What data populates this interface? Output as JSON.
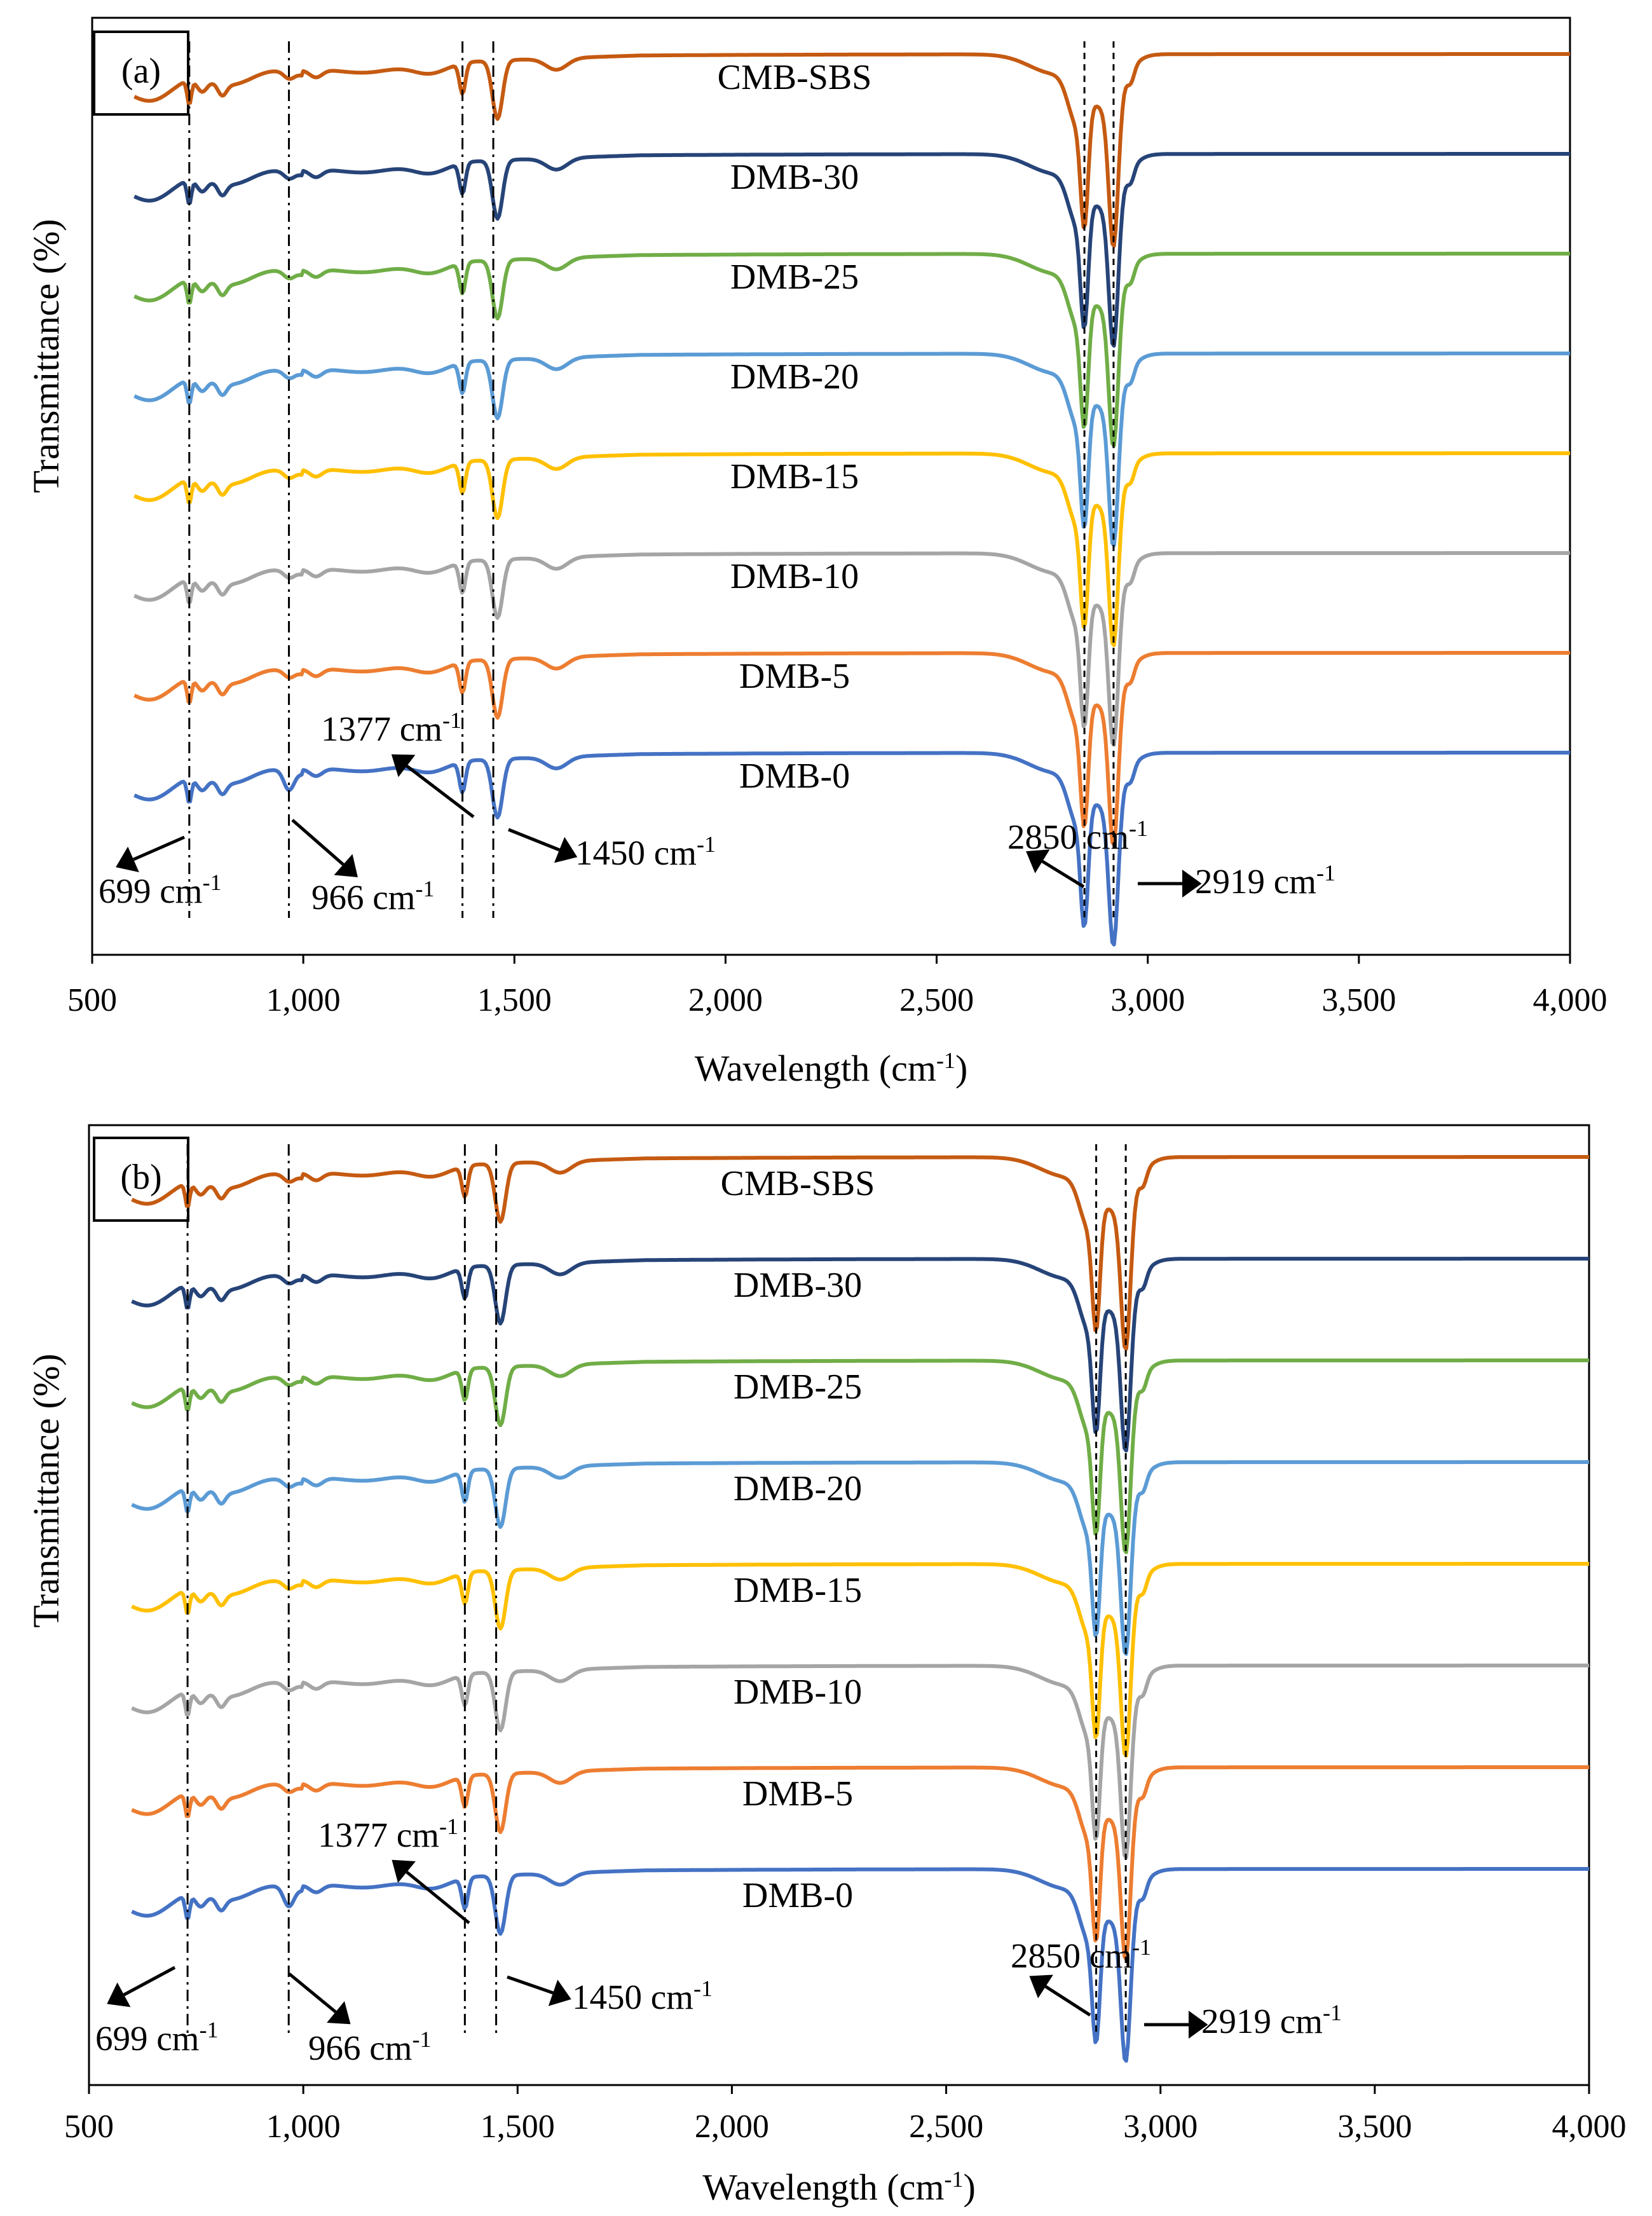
{
  "chart_data": [
    {
      "panel": "(a)",
      "type": "line",
      "xlabel": "Wavelength (cm-1)",
      "ylabel": "Transmittance (%)",
      "xlim": [
        500,
        4000
      ],
      "xticks": [
        "500",
        "1,000",
        "1,500",
        "2,000",
        "2,500",
        "3,000",
        "3,500",
        "4,000"
      ],
      "grid": false,
      "series": [
        {
          "name": "CMB-SBS",
          "color": "#C55A11"
        },
        {
          "name": "DMB-30",
          "color": "#264478"
        },
        {
          "name": "DMB-25",
          "color": "#70AD47"
        },
        {
          "name": "DMB-20",
          "color": "#5B9BD5"
        },
        {
          "name": "DMB-15",
          "color": "#FFC000"
        },
        {
          "name": "DMB-10",
          "color": "#A5A5A5"
        },
        {
          "name": "DMB-5",
          "color": "#ED7D31"
        },
        {
          "name": "DMB-0",
          "color": "#4472C4"
        }
      ],
      "peaks": [
        {
          "wavenumber": 699,
          "label": "699 cm-1"
        },
        {
          "wavenumber": 966,
          "label": "966 cm-1"
        },
        {
          "wavenumber": 1377,
          "label": "1377 cm-1"
        },
        {
          "wavenumber": 1450,
          "label": "1450 cm-1"
        },
        {
          "wavenumber": 2850,
          "label": "2850 cm-1"
        },
        {
          "wavenumber": 2919,
          "label": "2919 cm-1"
        }
      ]
    },
    {
      "panel": "(b)",
      "type": "line",
      "xlabel": "Wavelength (cm-1)",
      "ylabel": "Transmittance (%)",
      "xlim": [
        500,
        4000
      ],
      "xticks": [
        "500",
        "1,000",
        "1,500",
        "2,000",
        "2,500",
        "3,000",
        "3,500",
        "4,000"
      ],
      "grid": false,
      "series": [
        {
          "name": "CMB-SBS",
          "color": "#C55A11"
        },
        {
          "name": "DMB-30",
          "color": "#264478"
        },
        {
          "name": "DMB-25",
          "color": "#70AD47"
        },
        {
          "name": "DMB-20",
          "color": "#5B9BD5"
        },
        {
          "name": "DMB-15",
          "color": "#FFC000"
        },
        {
          "name": "DMB-10",
          "color": "#A5A5A5"
        },
        {
          "name": "DMB-5",
          "color": "#ED7D31"
        },
        {
          "name": "DMB-0",
          "color": "#4472C4"
        }
      ],
      "peaks": [
        {
          "wavenumber": 699,
          "label": "699 cm-1"
        },
        {
          "wavenumber": 966,
          "label": "966 cm-1"
        },
        {
          "wavenumber": 1377,
          "label": "1377 cm-1"
        },
        {
          "wavenumber": 1450,
          "label": "1450 cm-1"
        },
        {
          "wavenumber": 2850,
          "label": "2850 cm-1"
        },
        {
          "wavenumber": 2919,
          "label": "2919 cm-1"
        }
      ]
    }
  ]
}
